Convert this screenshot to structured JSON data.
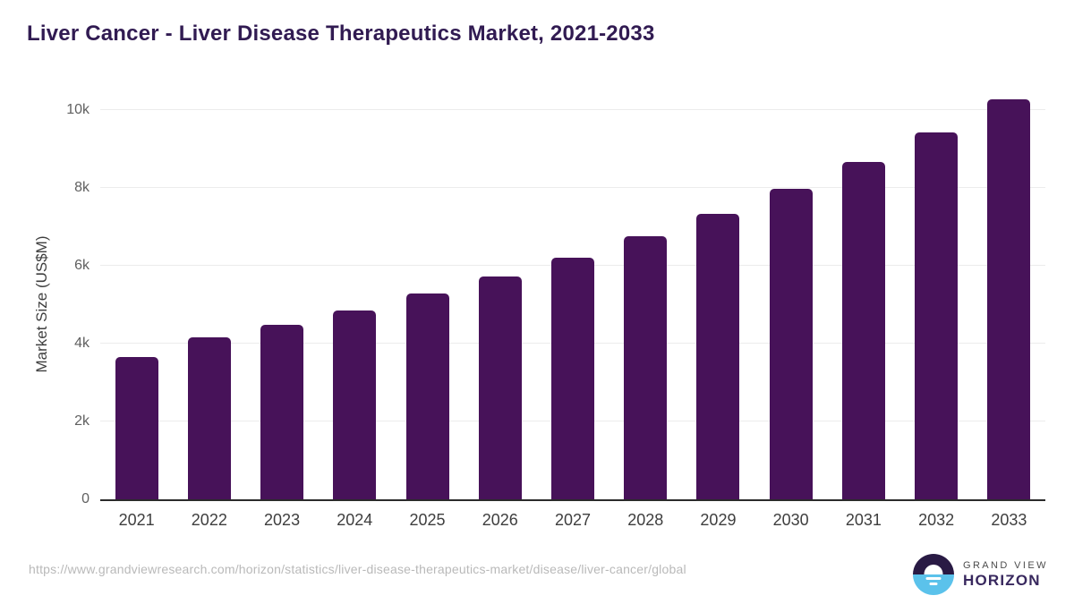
{
  "page": {
    "source_url": "https://www.grandviewresearch.com/horizon/statistics/liver-disease-therapeutics-market/disease/liver-cancer/global"
  },
  "branding": {
    "brand_line1": "GRAND VIEW",
    "brand_line2": "HORIZON",
    "logo_icon": "horizon-sun-circle-icon",
    "logo_top_color": "#291A44",
    "logo_bottom_color": "#5BC2EB"
  },
  "colors": {
    "bar": "#471259",
    "title_text": "#311B52",
    "gridline": "#ECECEC",
    "axis_line": "#2B2B2B",
    "y_tick_text": "#606060",
    "x_tick_text": "#3E3E3E",
    "y_axis_title_text": "#3F3F3F",
    "url_text": "#B9B9B9"
  },
  "chart_data": {
    "type": "bar",
    "title": "Liver Cancer - Liver Disease Therapeutics Market, 2021-2033",
    "xlabel": "",
    "ylabel": "Market Size (US$M)",
    "categories": [
      "2021",
      "2022",
      "2023",
      "2024",
      "2025",
      "2026",
      "2027",
      "2028",
      "2029",
      "2030",
      "2031",
      "2032",
      "2033"
    ],
    "values": [
      3660,
      4150,
      4480,
      4850,
      5280,
      5730,
      6210,
      6750,
      7340,
      7980,
      8670,
      9430,
      10280
    ],
    "ylim": [
      0,
      10500
    ],
    "yticks": [
      {
        "value": 0,
        "label": "0"
      },
      {
        "value": 2000,
        "label": "2k"
      },
      {
        "value": 4000,
        "label": "4k"
      },
      {
        "value": 6000,
        "label": "6k"
      },
      {
        "value": 8000,
        "label": "8k"
      },
      {
        "value": 10000,
        "label": "10k"
      }
    ],
    "grid": true,
    "legend_position": "none",
    "bar_color": "#471259"
  }
}
